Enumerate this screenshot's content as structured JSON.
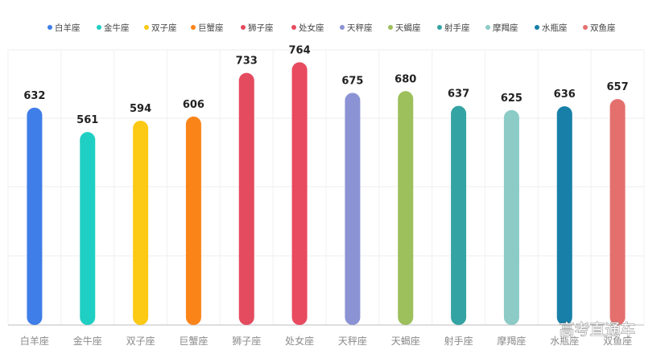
{
  "chart_data": {
    "type": "bar",
    "categories": [
      "白羊座",
      "金牛座",
      "双子座",
      "巨蟹座",
      "狮子座",
      "处女座",
      "天秤座",
      "天蝎座",
      "射手座",
      "摩羯座",
      "水瓶座",
      "双鱼座"
    ],
    "values": [
      632,
      561,
      594,
      606,
      733,
      764,
      675,
      680,
      637,
      625,
      636,
      657
    ],
    "colors": [
      "#3f7ee8",
      "#20cfc3",
      "#fcc915",
      "#fb8419",
      "#e44b5f",
      "#e84b5f",
      "#8b93d4",
      "#9dbf5c",
      "#34a3a3",
      "#8ccbc6",
      "#177fa8",
      "#e4706e"
    ],
    "ylim": [
      0,
      800
    ],
    "legend_position": "top-center",
    "grid": true
  },
  "watermark": "高考直通车"
}
